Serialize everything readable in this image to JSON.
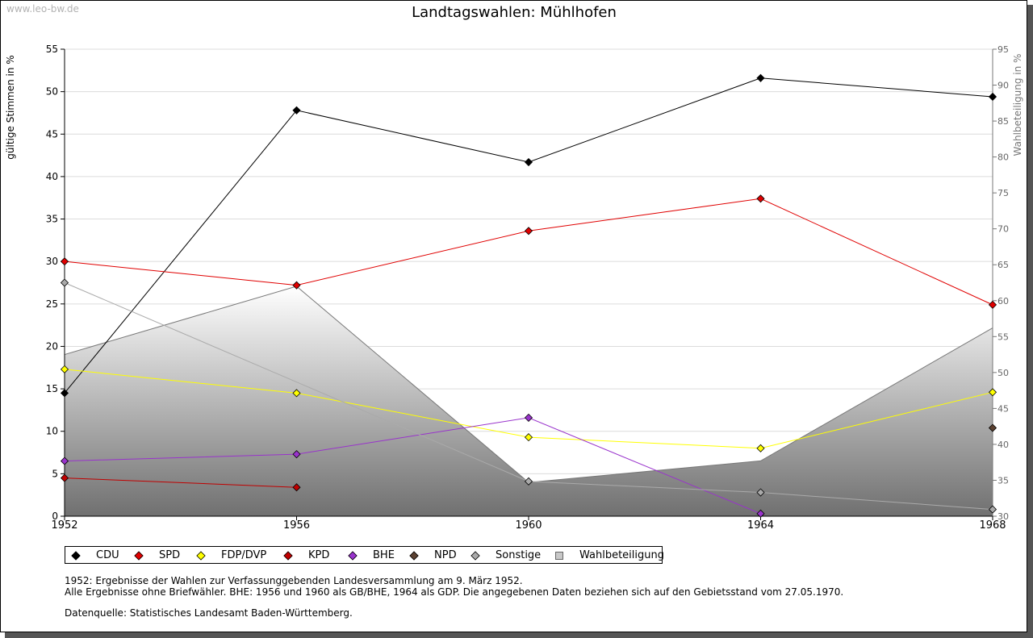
{
  "watermark": "www.leo-bw.de",
  "chart_data": {
    "type": "line",
    "title": "Landtagswahlen: Mühlhofen",
    "ylabel": "gültige Stimmen in %",
    "y2label": "Wahlbeteiligung in %",
    "categories": [
      "1952",
      "1956",
      "1960",
      "1964",
      "1968"
    ],
    "ylim": [
      0,
      55
    ],
    "yticks": [
      0,
      5,
      10,
      15,
      20,
      25,
      30,
      35,
      40,
      45,
      50,
      55
    ],
    "y2lim": [
      30,
      95
    ],
    "y2ticks": [
      30,
      35,
      40,
      45,
      50,
      55,
      60,
      65,
      70,
      75,
      80,
      85,
      90,
      95
    ],
    "grid": true,
    "series": [
      {
        "name": "CDU",
        "color": "#000000",
        "values": [
          14.5,
          47.8,
          41.7,
          51.6,
          49.4
        ]
      },
      {
        "name": "SPD",
        "color": "#e00000",
        "values": [
          30.0,
          27.2,
          33.6,
          37.4,
          24.9
        ]
      },
      {
        "name": "FDP/DVP",
        "color": "#ffff00",
        "values": [
          17.3,
          14.5,
          9.3,
          8.0,
          14.6
        ]
      },
      {
        "name": "KPD",
        "color": "#c00000",
        "values": [
          4.5,
          3.4,
          null,
          null,
          null
        ]
      },
      {
        "name": "BHE",
        "color": "#9933cc",
        "values": [
          6.5,
          7.3,
          11.6,
          0.3,
          null
        ]
      },
      {
        "name": "NPD",
        "color": "#5a4030",
        "values": [
          null,
          null,
          null,
          null,
          10.4
        ]
      },
      {
        "name": "Sonstige",
        "color": "#aaaaaa",
        "values": [
          27.5,
          null,
          4.1,
          2.8,
          0.8
        ]
      }
    ],
    "turnout": {
      "name": "Wahlbeteiligung",
      "values": [
        52.5,
        62.0,
        34.7,
        37.7,
        56.2
      ]
    }
  },
  "notes": {
    "line1": "1952: Ergebnisse der Wahlen zur Verfassunggebenden Landesversammlung am 9. März 1952.",
    "line2": "Alle Ergebnisse ohne Briefwähler. BHE: 1956 und 1960 als GB/BHE, 1964 als GDP. Die angegebenen Daten beziehen sich auf den Gebietsstand vom 27.05.1970.",
    "line3": "Datenquelle: Statistisches Landesamt Baden-Württemberg."
  }
}
